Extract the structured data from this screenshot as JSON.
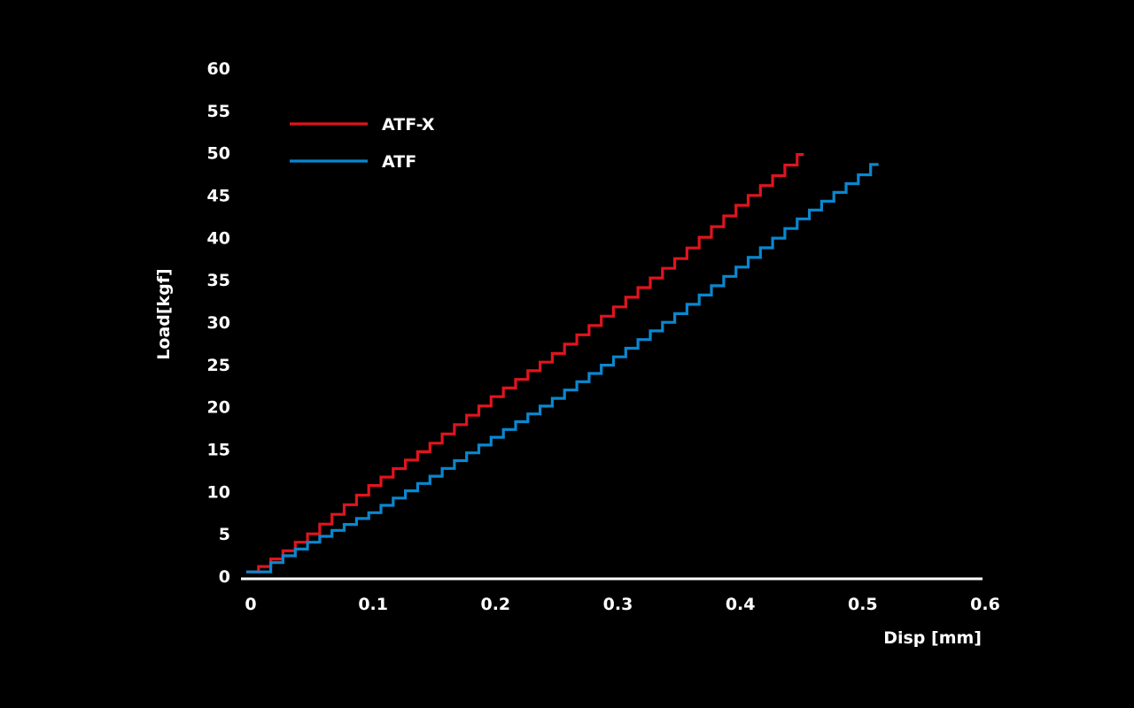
{
  "chart_data": {
    "type": "line",
    "title": "",
    "xlabel": "Disp [mm]",
    "ylabel": "Load[kgf]",
    "xlim": [
      0,
      0.6
    ],
    "ylim": [
      0,
      60
    ],
    "x_ticks": [
      {
        "value": 0,
        "label": "0"
      },
      {
        "value": 0.1,
        "label": "0.1"
      },
      {
        "value": 0.2,
        "label": "0.2"
      },
      {
        "value": 0.3,
        "label": "0.3"
      },
      {
        "value": 0.4,
        "label": "0.4"
      },
      {
        "value": 0.5,
        "label": "0.5"
      },
      {
        "value": 0.6,
        "label": "0.6"
      }
    ],
    "y_ticks": [
      {
        "value": 0,
        "label": "0"
      },
      {
        "value": 5,
        "label": "5"
      },
      {
        "value": 10,
        "label": "10"
      },
      {
        "value": 15,
        "label": "15"
      },
      {
        "value": 20,
        "label": "20"
      },
      {
        "value": 25,
        "label": "25"
      },
      {
        "value": 30,
        "label": "30"
      },
      {
        "value": 35,
        "label": "35"
      },
      {
        "value": 40,
        "label": "40"
      },
      {
        "value": 45,
        "label": "45"
      },
      {
        "value": 50,
        "label": "50"
      },
      {
        "value": 55,
        "label": "55"
      },
      {
        "value": 60,
        "label": "60"
      }
    ],
    "grid": false,
    "legend_position": "top-left",
    "step_style": "staircase",
    "series": [
      {
        "name": "ATF-X",
        "color": "#e0141e",
        "x": [
          0,
          0.0125,
          0.03,
          0.05,
          0.07,
          0.1,
          0.15,
          0.2,
          0.25,
          0.3,
          0.35,
          0.4,
          0.43,
          0.45,
          0.4555
        ],
        "y": [
          0.5,
          1.3,
          3.0,
          5.0,
          7.3,
          10.7,
          15.7,
          21.2,
          26.3,
          31.8,
          37.5,
          43.8,
          47.3,
          49.8,
          49.8
        ]
      },
      {
        "name": "ATF",
        "color": "#0a87cf",
        "x": [
          0,
          0.0115,
          0.02,
          0.05,
          0.1,
          0.15,
          0.2,
          0.25,
          0.3,
          0.35,
          0.4,
          0.45,
          0.5,
          0.5165
        ],
        "y": [
          0.5,
          0.5,
          1.6,
          4.0,
          7.5,
          11.8,
          16.4,
          21.0,
          25.9,
          31.0,
          36.5,
          42.2,
          47.4,
          49.4
        ]
      }
    ]
  }
}
